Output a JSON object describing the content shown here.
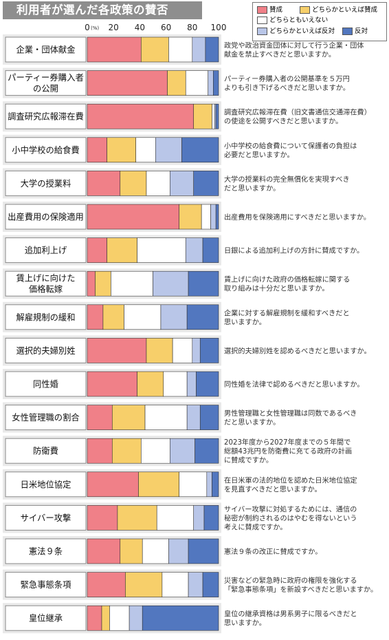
{
  "title": "利用者が選んだ各政策の賛否",
  "colors": {
    "sansei": "#f08088",
    "yaya_sansei": "#f7cf6a",
    "dochira_demo": "#ffffff",
    "yaya_hantai": "#b9c6e8",
    "hantai": "#5277bf",
    "row_bg": "#e9e9e9"
  },
  "legend": {
    "items": [
      {
        "label": "賛成",
        "color": "#f08088"
      },
      {
        "label": "どちらかといえば賛成",
        "color": "#f7cf6a"
      },
      {
        "label": "どちらともいえない",
        "color": "#ffffff"
      },
      {
        "label": "どちらかといえば反対",
        "color": "#b9c6e8"
      },
      {
        "label": "反対",
        "color": "#5277bf"
      }
    ]
  },
  "axis": {
    "ticks": [
      "0",
      "20",
      "40",
      "60",
      "80",
      "100"
    ],
    "unit": "(%)"
  },
  "chart_data": {
    "type": "bar",
    "stacked": true,
    "orientation": "horizontal",
    "title": "利用者が選んだ各政策の賛否",
    "xlim": [
      0,
      100
    ],
    "series_names": [
      "賛成",
      "どちらかといえば賛成",
      "どちらともいえない",
      "どちらかといえば反対",
      "反対"
    ],
    "rows": [
      {
        "label": [
          "企業・団体献金"
        ],
        "values": [
          41,
          21,
          18,
          10,
          10
        ],
        "question": [
          "政党や政治資金団体に対して行う企業・団体",
          "献金を禁止すべきだと思いますか。"
        ]
      },
      {
        "label": [
          "パーティー券購入者",
          "の公開"
        ],
        "values": [
          61,
          14,
          17,
          4,
          4
        ],
        "question": [
          "パーティー券購入者の公開基準を５万円",
          "よりも引き下げるべきだと思いますか。"
        ]
      },
      {
        "label": [
          "調査研究広報滞在費"
        ],
        "values": [
          81,
          14,
          2,
          1,
          2
        ],
        "question": [
          "調査研究広報滞在費（旧文書通信交通滞在費）",
          "の使途を公開すべきだと思いますか。"
        ]
      },
      {
        "label": [
          "小中学校の給食費"
        ],
        "values": [
          15,
          22,
          15,
          20,
          28
        ],
        "question": [
          "小中学校の給食費について保護者の負担は",
          "必要だと思いますか。"
        ]
      },
      {
        "label": [
          "大学の授業料"
        ],
        "values": [
          25,
          20,
          18,
          18,
          19
        ],
        "question": [
          "大学の授業料の完全無償化を実現すべき",
          "だと思いますか。"
        ]
      },
      {
        "label": [
          "出産費用の保険適用"
        ],
        "values": [
          70,
          17,
          7,
          4,
          2
        ],
        "question": [
          "出産費用を保険適用にすべきだと思いますか。"
        ]
      },
      {
        "label": [
          "追加利上げ"
        ],
        "values": [
          15,
          23,
          37,
          13,
          12
        ],
        "question": [
          "日銀による追加利上げの方針に賛成ですか。"
        ]
      },
      {
        "label": [
          "賃上げに向けた",
          "価格転嫁"
        ],
        "values": [
          6,
          12,
          32,
          27,
          23
        ],
        "question": [
          "賃上げに向けた政府の価格転嫁に関する",
          "取り組みは十分だと思いますか。"
        ]
      },
      {
        "label": [
          "解雇規制の緩和"
        ],
        "values": [
          12,
          16,
          28,
          20,
          24
        ],
        "question": [
          "企業に対する解雇規制を緩和すべきだと",
          "思いますか。"
        ]
      },
      {
        "label": [
          "選択的夫婦別姓"
        ],
        "values": [
          45,
          20,
          15,
          6,
          14
        ],
        "question": [
          "選択的夫婦別姓を認めるべきだと思いますか。"
        ]
      },
      {
        "label": [
          "同性婚"
        ],
        "values": [
          38,
          20,
          18,
          7,
          17
        ],
        "question": [
          "同性婚を法律で認めるべきだと思いますか。"
        ]
      },
      {
        "label": [
          "女性管理職の割合"
        ],
        "values": [
          19,
          25,
          32,
          10,
          14
        ],
        "question": [
          "男性管理職と女性管理職は同数であるべき",
          "だと思いますか。"
        ]
      },
      {
        "label": [
          "防衛費"
        ],
        "values": [
          19,
          22,
          22,
          19,
          18
        ],
        "question": [
          "2023年度から2027年度までの５年間で",
          "総額43兆円を防衛費に充てる政府の計画",
          "に賛成ですか。"
        ]
      },
      {
        "label": [
          "日米地位協定"
        ],
        "values": [
          39,
          31,
          21,
          4,
          5
        ],
        "question": [
          "在日米軍の法的地位を認めた日米地位協定",
          "を見直すべきだと思いますか。"
        ]
      },
      {
        "label": [
          "サイバー攻撃"
        ],
        "values": [
          23,
          30,
          28,
          8,
          11
        ],
        "question": [
          "サイバー攻撃に対処するためには、通信の",
          "秘密が制約されるのはやむを得ないという",
          "考えに賛成ですか。"
        ]
      },
      {
        "label": [
          "憲法９条"
        ],
        "values": [
          25,
          17,
          20,
          15,
          23
        ],
        "question": [
          "憲法９条の改正に賛成ですか。"
        ]
      },
      {
        "label": [
          "緊急事態条項"
        ],
        "values": [
          29,
          28,
          20,
          11,
          12
        ],
        "question": [
          "災害などの緊急時に政府の権限を強化する",
          "「緊急事態条項」を新設すべきだと思いますか。"
        ]
      },
      {
        "label": [
          "皇位継承"
        ],
        "values": [
          11,
          6,
          15,
          10,
          58
        ],
        "question": [
          "皇位の継承資格は男系男子に限るべきだと",
          "思いますか。"
        ]
      }
    ]
  }
}
